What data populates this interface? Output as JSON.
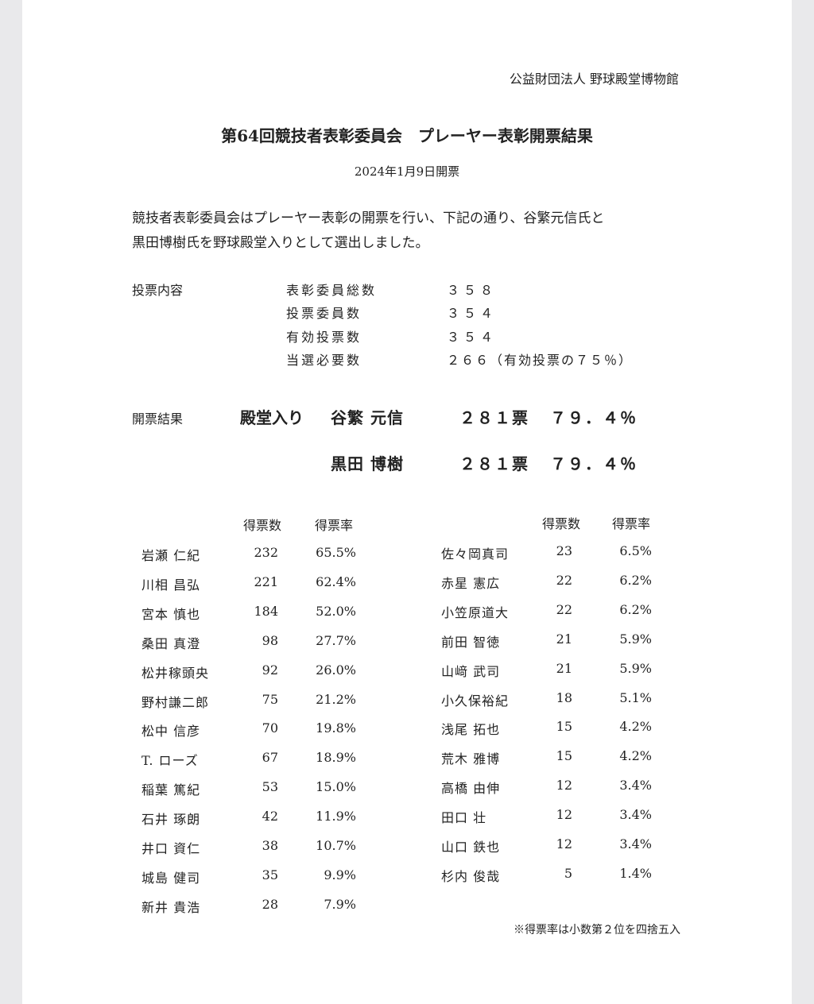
{
  "organization": "公益財団法人 野球殿堂博物館",
  "title": "第64回競技者表彰委員会　プレーヤー表彰開票結果",
  "date": "2024年1月9日開票",
  "intro_lines": [
    "競技者表彰委員会はプレーヤー表彰の開票を行い、下記の通り、谷繁元信氏と",
    "黒田博樹氏を野球殿堂入りとして選出しました。"
  ],
  "voting": {
    "label": "投票内容",
    "items": [
      {
        "key": "表彰委員総数",
        "value": "３５８"
      },
      {
        "key": "投票委員数",
        "value": "３５４"
      },
      {
        "key": "有効投票数",
        "value": "３５４"
      },
      {
        "key": "当選必要数",
        "value": "２６６（有効投票の７５％）"
      }
    ]
  },
  "results": {
    "label": "開票結果",
    "status": "殿堂入り",
    "winners": [
      {
        "name": "谷繁 元信",
        "votes": "２８１票",
        "pct": "７９．４％"
      },
      {
        "name": "黒田 博樹",
        "votes": "２８１票",
        "pct": "７９．４％"
      }
    ]
  },
  "table": {
    "headers": {
      "votes": "得票数",
      "pct": "得票率"
    },
    "left": [
      {
        "name": "岩瀬 仁紀",
        "votes": "232",
        "pct": "65.5%"
      },
      {
        "name": "川相 昌弘",
        "votes": "221",
        "pct": "62.4%"
      },
      {
        "name": "宮本 慎也",
        "votes": "184",
        "pct": "52.0%"
      },
      {
        "name": "桑田 真澄",
        "votes": "98",
        "pct": "27.7%"
      },
      {
        "name": "松井稼頭央",
        "votes": "92",
        "pct": "26.0%"
      },
      {
        "name": "野村謙二郎",
        "votes": "75",
        "pct": "21.2%"
      },
      {
        "name": "松中 信彦",
        "votes": "70",
        "pct": "19.8%"
      },
      {
        "name": "T. ローズ",
        "votes": "67",
        "pct": "18.9%"
      },
      {
        "name": "稲葉 篤紀",
        "votes": "53",
        "pct": "15.0%"
      },
      {
        "name": "石井 琢朗",
        "votes": "42",
        "pct": "11.9%"
      },
      {
        "name": "井口 資仁",
        "votes": "38",
        "pct": "10.7%"
      },
      {
        "name": "城島 健司",
        "votes": "35",
        "pct": "9.9%"
      },
      {
        "name": "新井 貴浩",
        "votes": "28",
        "pct": "7.9%"
      }
    ],
    "right": [
      {
        "name": "佐々岡真司",
        "votes": "23",
        "pct": "6.5%"
      },
      {
        "name": "赤星 憲広",
        "votes": "22",
        "pct": "6.2%"
      },
      {
        "name": "小笠原道大",
        "votes": "22",
        "pct": "6.2%"
      },
      {
        "name": "前田 智徳",
        "votes": "21",
        "pct": "5.9%"
      },
      {
        "name": "山﨑 武司",
        "votes": "21",
        "pct": "5.9%"
      },
      {
        "name": "小久保裕紀",
        "votes": "18",
        "pct": "5.1%"
      },
      {
        "name": "浅尾 拓也",
        "votes": "15",
        "pct": "4.2%"
      },
      {
        "name": "荒木 雅博",
        "votes": "15",
        "pct": "4.2%"
      },
      {
        "name": "高橋 由伸",
        "votes": "12",
        "pct": "3.4%"
      },
      {
        "name": "田口 壮",
        "votes": "12",
        "pct": "3.4%"
      },
      {
        "name": "山口 鉄也",
        "votes": "12",
        "pct": "3.4%"
      },
      {
        "name": "杉内 俊哉",
        "votes": "5",
        "pct": "1.4%"
      }
    ]
  },
  "note": "※得票率は小数第２位を四捨五入"
}
